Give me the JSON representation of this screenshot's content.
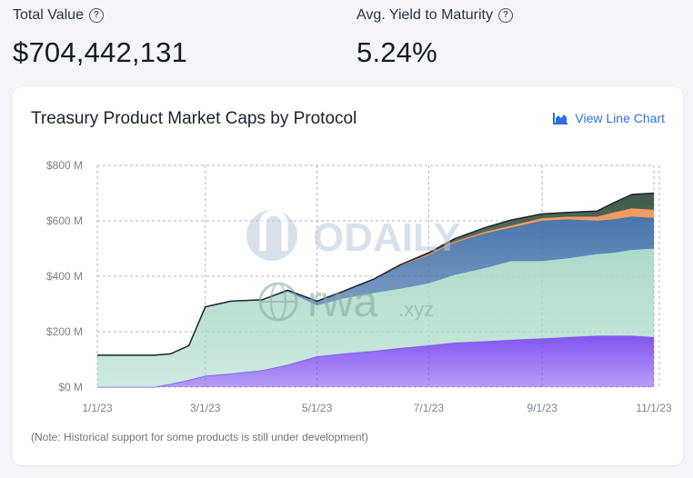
{
  "stats": {
    "total_value_label": "Total Value",
    "total_value": "$704,442,131",
    "yield_label": "Avg. Yield to Maturity",
    "yield_value": "5.24%"
  },
  "card": {
    "title": "Treasury Product Market Caps by Protocol",
    "view_link": "View Line Chart",
    "note": "(Note: Historical support for some products is still under development)"
  },
  "watermark": {
    "brand1": "ODAILY",
    "brand2": "rwa",
    "brand2_suffix": ".xyz"
  },
  "chart_data": {
    "type": "area",
    "stacked": true,
    "title": "Treasury Product Market Caps by Protocol",
    "xlabel": "",
    "ylabel": "",
    "ylim": [
      0,
      800
    ],
    "yticks": [
      0,
      200,
      400,
      600,
      800
    ],
    "ytick_labels": [
      "$0 M",
      "$200 M",
      "$400 M",
      "$600 M",
      "$800 M"
    ],
    "xticks": [
      "2023-01-01",
      "2023-03-01",
      "2023-05-01",
      "2023-07-01",
      "2023-09-01",
      "2023-11-01"
    ],
    "xtick_labels": [
      "1/1/23",
      "3/1/23",
      "5/1/23",
      "7/1/23",
      "9/1/23",
      "11/1/23"
    ],
    "x_range": [
      "2023-01-01",
      "2023-11-01"
    ],
    "grid": true,
    "dates": [
      "2023-01-01",
      "2023-01-20",
      "2023-02-01",
      "2023-02-10",
      "2023-02-20",
      "2023-03-01",
      "2023-03-15",
      "2023-04-01",
      "2023-04-15",
      "2023-05-01",
      "2023-05-15",
      "2023-06-01",
      "2023-06-15",
      "2023-07-01",
      "2023-07-15",
      "2023-08-01",
      "2023-08-15",
      "2023-09-01",
      "2023-09-15",
      "2023-10-01",
      "2023-10-10",
      "2023-10-20",
      "2023-11-01"
    ],
    "series": [
      {
        "color": "#7b4cf0",
        "values": [
          0,
          0,
          0,
          10,
          25,
          40,
          48,
          60,
          80,
          110,
          120,
          130,
          140,
          150,
          160,
          165,
          170,
          175,
          180,
          185,
          185,
          185,
          180
        ]
      },
      {
        "color": "#a8d8c8",
        "values": [
          115,
          115,
          115,
          110,
          125,
          250,
          262,
          255,
          265,
          185,
          200,
          210,
          215,
          225,
          245,
          265,
          285,
          280,
          285,
          295,
          300,
          310,
          320
        ]
      },
      {
        "color": "#3f6fa8",
        "values": [
          0,
          0,
          0,
          0,
          0,
          0,
          0,
          0,
          5,
          15,
          25,
          50,
          80,
          100,
          115,
          125,
          120,
          145,
          140,
          120,
          120,
          120,
          110
        ]
      },
      {
        "color": "#f0955a",
        "values": [
          0,
          0,
          0,
          0,
          0,
          0,
          0,
          0,
          0,
          0,
          0,
          0,
          3,
          5,
          5,
          6,
          8,
          10,
          10,
          15,
          25,
          30,
          30
        ]
      },
      {
        "color": "#35513f",
        "values": [
          0,
          0,
          0,
          0,
          0,
          0,
          0,
          0,
          0,
          0,
          0,
          0,
          2,
          5,
          10,
          15,
          20,
          15,
          15,
          20,
          35,
          50,
          60
        ]
      }
    ]
  }
}
